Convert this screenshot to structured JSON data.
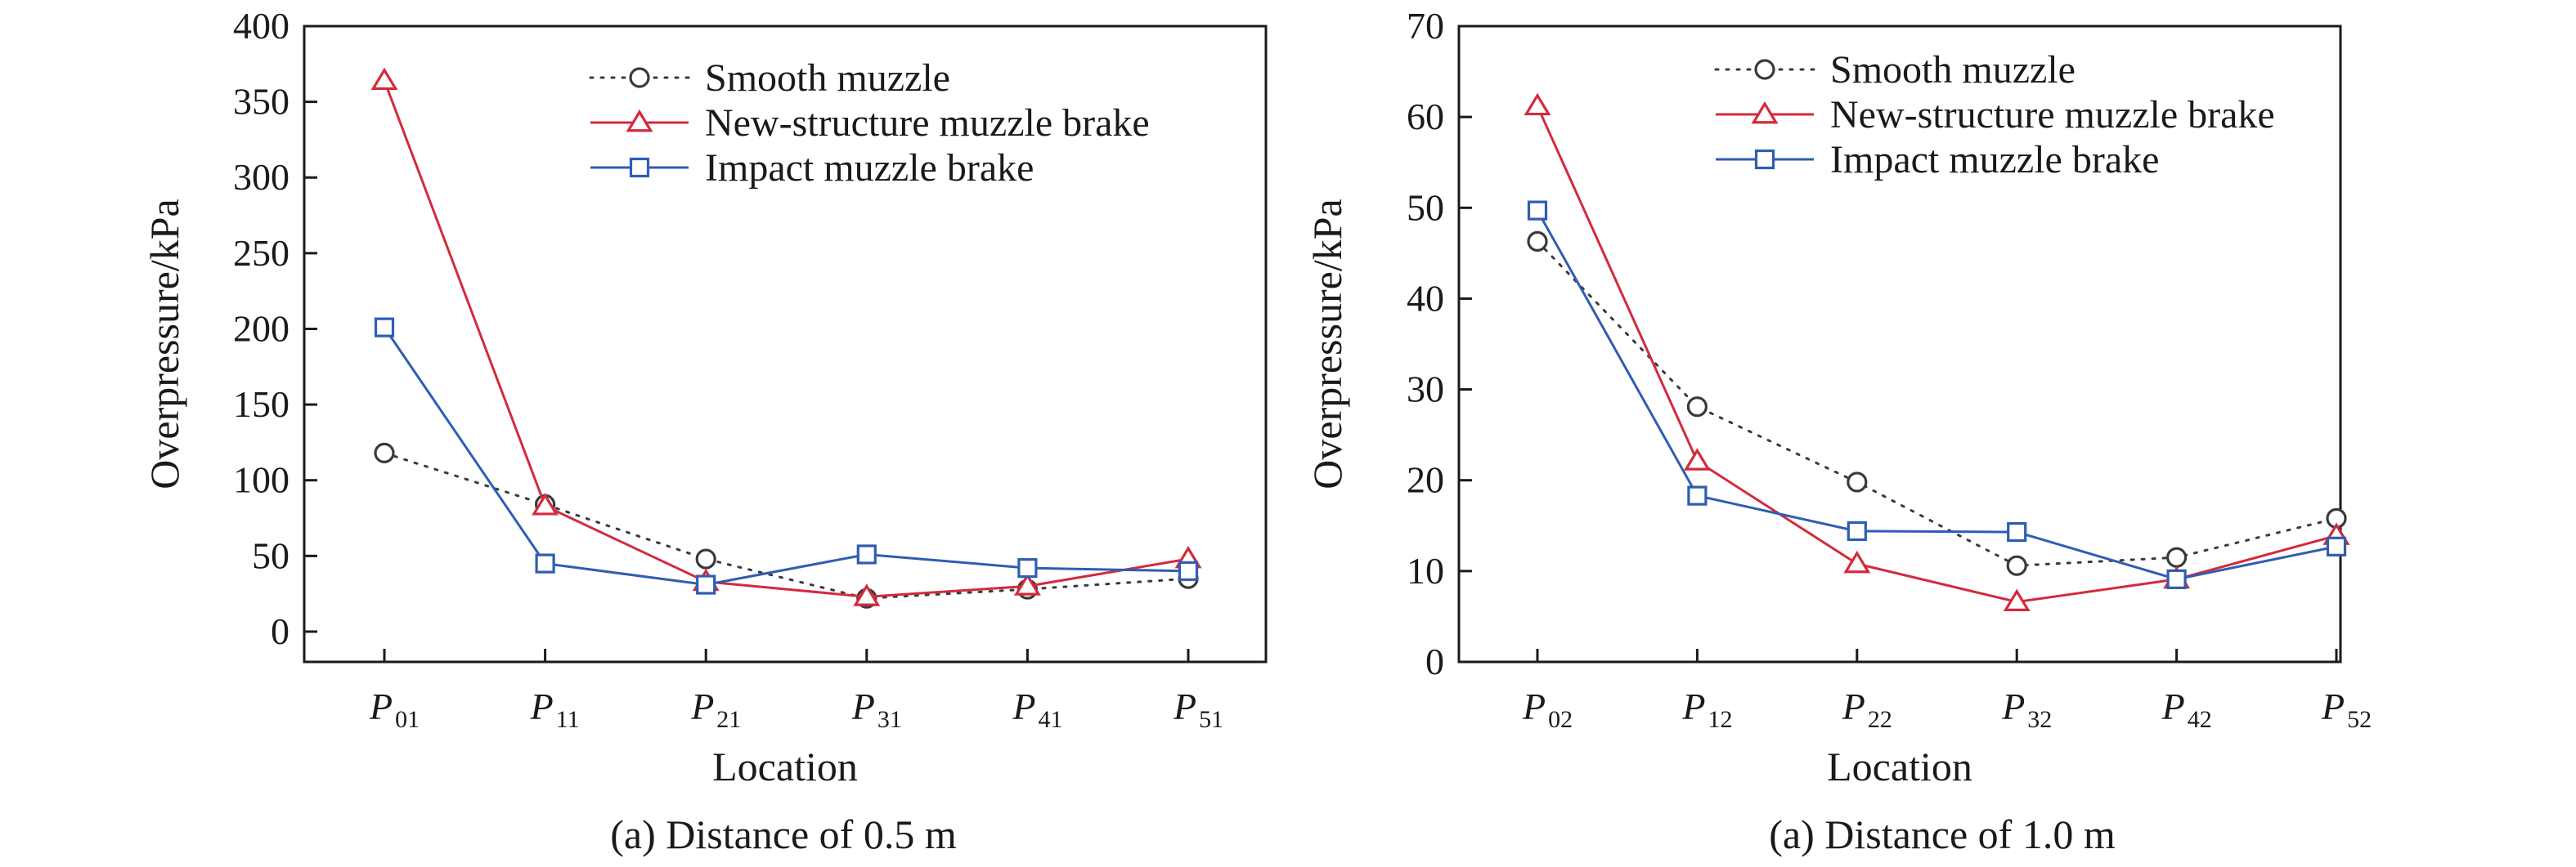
{
  "colors": {
    "smooth": "#3a3a3a",
    "new_structure": "#d42a3c",
    "impact": "#2f5db2",
    "axis": "#1a1a1a"
  },
  "chart_data": [
    {
      "type": "line",
      "caption": "(a) Distance of 0.5 m",
      "xlabel": "Location",
      "ylabel": "Overpressure/kPa",
      "categories": [
        {
          "base": "P",
          "sub": "01"
        },
        {
          "base": "P",
          "sub": "11"
        },
        {
          "base": "P",
          "sub": "21"
        },
        {
          "base": "P",
          "sub": "31"
        },
        {
          "base": "P",
          "sub": "41"
        },
        {
          "base": "P",
          "sub": "51"
        }
      ],
      "ylim": [
        -20,
        400
      ],
      "yticks": [
        0,
        50,
        100,
        150,
        200,
        250,
        300,
        350,
        400
      ],
      "legend_position": "top-right",
      "grid": false,
      "series": [
        {
          "name": "Smooth muzzle",
          "marker": "circle",
          "line_style": "dotted",
          "color_key": "smooth",
          "values": [
            118,
            84,
            48,
            22,
            28,
            35
          ]
        },
        {
          "name": "New-structure muzzle brake",
          "marker": "triangle",
          "line_style": "solid",
          "color_key": "new_structure",
          "values": [
            364,
            83,
            33,
            23,
            30,
            48
          ]
        },
        {
          "name": "Impact muzzle brake",
          "marker": "square",
          "line_style": "solid",
          "color_key": "impact",
          "values": [
            201,
            45,
            31,
            51,
            42,
            40
          ]
        }
      ]
    },
    {
      "type": "line",
      "caption": "(a) Distance of 1.0 m",
      "xlabel": "Location",
      "ylabel": "Overpressure/kPa",
      "categories": [
        {
          "base": "P",
          "sub": "02"
        },
        {
          "base": "P",
          "sub": "12"
        },
        {
          "base": "P",
          "sub": "22"
        },
        {
          "base": "P",
          "sub": "32"
        },
        {
          "base": "P",
          "sub": "42"
        },
        {
          "base": "P",
          "sub": "52"
        }
      ],
      "ylim": [
        0,
        70
      ],
      "yticks": [
        0,
        10,
        20,
        30,
        40,
        50,
        60,
        70
      ],
      "legend_position": "top-right",
      "grid": false,
      "series": [
        {
          "name": "Smooth muzzle",
          "marker": "circle",
          "line_style": "dotted",
          "color_key": "smooth",
          "values": [
            46.3,
            28.1,
            19.8,
            10.6,
            11.5,
            15.8
          ]
        },
        {
          "name": "New-structure muzzle brake",
          "marker": "triangle",
          "line_style": "solid",
          "color_key": "new_structure",
          "values": [
            61.2,
            22.1,
            10.8,
            6.6,
            9.1,
            13.9
          ]
        },
        {
          "name": "Impact muzzle brake",
          "marker": "square",
          "line_style": "solid",
          "color_key": "impact",
          "values": [
            49.7,
            18.3,
            14.4,
            14.3,
            9.1,
            12.7
          ]
        }
      ]
    }
  ]
}
